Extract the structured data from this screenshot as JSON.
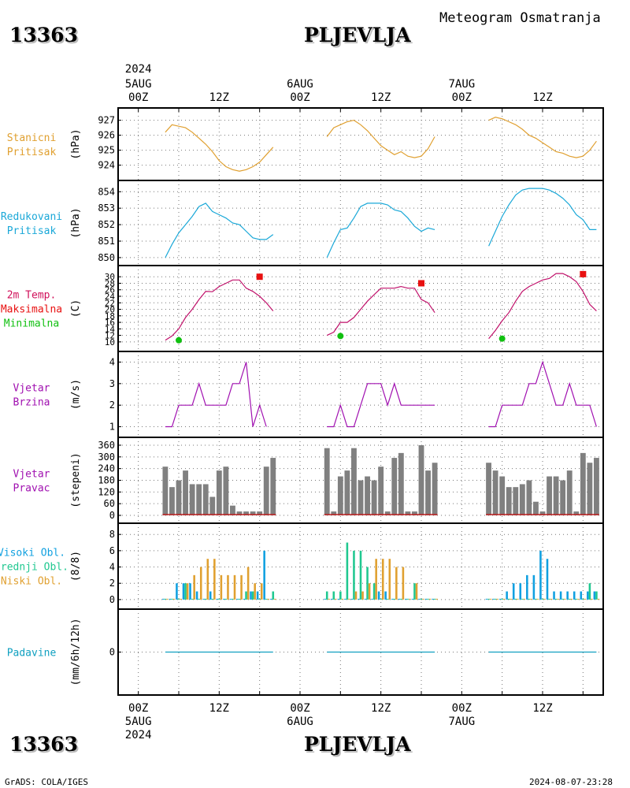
{
  "header": {
    "station_id": "13363",
    "station_name": "PLJEVLJA",
    "subtitle": "Meteogram Osmatranja"
  },
  "footer": {
    "station_id": "13363",
    "station_name": "PLJEVLJA",
    "credit": "GrADS: COLA/IGES",
    "timestamp": "2024-08-07-23:28"
  },
  "colors": {
    "pressure": "#e0a030",
    "reduced": "#1aa8d8",
    "temp_label": "#d0105a",
    "temp_line": "#c0106a",
    "max": "#e81010",
    "min": "#10c010",
    "wind": "#a010b0",
    "bars": "#808080",
    "high_cloud": "#10a0e0",
    "mid_cloud": "#20c890",
    "low_cloud": "#e0a030",
    "precip": "#10a0c0"
  },
  "time_axis": {
    "top_year": "2024",
    "top_labels": [
      {
        "hour": 0,
        "lines": [
          "5AUG",
          "00Z"
        ]
      },
      {
        "hour": 12,
        "lines": [
          "12Z"
        ]
      },
      {
        "hour": 24,
        "lines": [
          "6AUG",
          "00Z"
        ]
      },
      {
        "hour": 36,
        "lines": [
          "12Z"
        ]
      },
      {
        "hour": 48,
        "lines": [
          "7AUG",
          "00Z"
        ]
      },
      {
        "hour": 60,
        "lines": [
          "12Z"
        ]
      }
    ],
    "bottom_labels": [
      {
        "hour": 0,
        "lines": [
          "00Z",
          "5AUG",
          "2024"
        ]
      },
      {
        "hour": 12,
        "lines": [
          "12Z"
        ]
      },
      {
        "hour": 24,
        "lines": [
          "00Z",
          "6AUG"
        ]
      },
      {
        "hour": 36,
        "lines": [
          "12Z"
        ]
      },
      {
        "hour": 48,
        "lines": [
          "00Z",
          "7AUG"
        ]
      },
      {
        "hour": 60,
        "lines": [
          "12Z"
        ]
      }
    ]
  },
  "panels": [
    {
      "key": "station_pressure",
      "labels": [
        "Stanicni",
        "Pritisak"
      ],
      "label_color": "pressure",
      "unit": "(hPa)",
      "ymin": 923.4,
      "ymax": 927.4,
      "ticks": [
        924,
        925,
        926,
        927
      ]
    },
    {
      "key": "reduced_pressure",
      "labels": [
        "Redukovani",
        "Pritisak"
      ],
      "label_color": "reduced",
      "unit": "(hPa)",
      "ymin": 849.9,
      "ymax": 854.3,
      "ticks": [
        850,
        851,
        852,
        853,
        854
      ]
    },
    {
      "key": "temperature",
      "labels": [
        "2m Temp.",
        "Maksimalna",
        "Minimalna"
      ],
      "label_colors": [
        "temp_label",
        "max",
        "min"
      ],
      "unit": "(C)",
      "ymin": 9,
      "ymax": 31.5,
      "ticks": [
        10,
        12,
        14,
        16,
        18,
        20,
        22,
        24,
        26,
        28,
        30
      ]
    },
    {
      "key": "wind_speed",
      "labels": [
        "Vjetar",
        "Brzina"
      ],
      "label_color": "wind",
      "unit": "(m/s)",
      "ymin": 0.8,
      "ymax": 4.2,
      "ticks": [
        1,
        2,
        3,
        4
      ]
    },
    {
      "key": "wind_direction",
      "labels": [
        "Vjetar",
        "Pravac"
      ],
      "label_color": "wind",
      "unit": "(stepeni)",
      "ymin": -8,
      "ymax": 368,
      "ticks": [
        0,
        60,
        120,
        180,
        240,
        300,
        360
      ]
    },
    {
      "key": "clouds",
      "labels": [
        "Visoki Obl.",
        "Srednji Obl.",
        "Niski Obl."
      ],
      "label_colors": [
        "high_cloud",
        "mid_cloud",
        "low_cloud"
      ],
      "unit": "(8/8)",
      "ymin": -0.4,
      "ymax": 8.6,
      "ticks": [
        0,
        2,
        4,
        6,
        8
      ]
    },
    {
      "key": "precipitation",
      "labels": [
        "Padavine"
      ],
      "label_color": "precip",
      "unit": "(mm/6h/12h)",
      "ymin": -5,
      "ymax": 5,
      "ticks": [
        0
      ]
    }
  ],
  "chart_data": {
    "type": "line",
    "x_unit": "hours since 5AUG 00Z",
    "xlim": [
      -3,
      69
    ],
    "station_pressure": [
      {
        "x": [
          4,
          5,
          6,
          7,
          8,
          9,
          10,
          11,
          12,
          13,
          14,
          15,
          16,
          17,
          18,
          19,
          20
        ],
        "y": [
          926.2,
          926.7,
          926.6,
          926.5,
          926.2,
          925.8,
          925.4,
          924.9,
          924.3,
          923.9,
          923.7,
          923.6,
          923.7,
          923.9,
          924.2,
          924.7,
          925.2
        ]
      },
      {
        "x": [
          28,
          29,
          30,
          31,
          32,
          33,
          34,
          35,
          36,
          37,
          38,
          39,
          40,
          41,
          42,
          43,
          44
        ],
        "y": [
          925.9,
          926.5,
          926.7,
          926.9,
          927.0,
          926.7,
          926.3,
          925.8,
          925.3,
          925.0,
          924.7,
          924.9,
          924.6,
          924.5,
          924.6,
          925.1,
          925.9
        ]
      },
      {
        "x": [
          52,
          53,
          54,
          55,
          56,
          57,
          58,
          59,
          60,
          61,
          62,
          63,
          64,
          65,
          66,
          67,
          68
        ],
        "y": [
          927.0,
          927.2,
          927.1,
          926.9,
          926.7,
          926.4,
          926.0,
          925.8,
          925.5,
          925.2,
          924.9,
          924.8,
          924.6,
          924.5,
          924.6,
          925.0,
          925.6
        ]
      }
    ],
    "reduced_pressure": [
      {
        "x": [
          4,
          5,
          6,
          7,
          8,
          9,
          10,
          11,
          12,
          13,
          14,
          15,
          16,
          17,
          18,
          19,
          20
        ],
        "y": [
          850.0,
          850.8,
          851.5,
          852.0,
          852.5,
          853.1,
          853.3,
          852.8,
          852.6,
          852.4,
          852.1,
          852.0,
          851.6,
          851.2,
          851.1,
          851.1,
          851.4
        ]
      },
      {
        "x": [
          28,
          29,
          30,
          31,
          32,
          33,
          34,
          35,
          36,
          37,
          38,
          39,
          40,
          41,
          42,
          43,
          44
        ],
        "y": [
          850.0,
          850.9,
          851.7,
          851.8,
          852.4,
          853.1,
          853.3,
          853.3,
          853.3,
          853.2,
          852.9,
          852.8,
          852.4,
          851.9,
          851.6,
          851.8,
          851.7
        ]
      },
      {
        "x": [
          52,
          53,
          54,
          55,
          56,
          57,
          58,
          59,
          60,
          61,
          62,
          63,
          64,
          65,
          66,
          67,
          68
        ],
        "y": [
          850.7,
          851.6,
          852.5,
          853.2,
          853.8,
          854.1,
          854.2,
          854.2,
          854.2,
          854.1,
          853.9,
          853.6,
          853.2,
          852.6,
          852.3,
          851.7,
          851.7
        ]
      }
    ],
    "temperature": [
      {
        "x": [
          4,
          5,
          6,
          7,
          8,
          9,
          10,
          11,
          12,
          13,
          14,
          15,
          16,
          17,
          18,
          19,
          20
        ],
        "y": [
          10.5,
          11.8,
          14.0,
          17.5,
          20.0,
          23.0,
          25.5,
          25.4,
          27.0,
          28.0,
          29.0,
          29.0,
          26.5,
          25.5,
          24.0,
          22.0,
          19.5
        ]
      },
      {
        "x": [
          28,
          29,
          30,
          31,
          32,
          33,
          34,
          35,
          36,
          37,
          38,
          39,
          40,
          41,
          42,
          43,
          44
        ],
        "y": [
          12.0,
          13.0,
          16.0,
          16.0,
          17.5,
          20.0,
          22.5,
          24.5,
          26.5,
          26.5,
          26.5,
          27.0,
          26.5,
          26.5,
          23.0,
          22.0,
          19.0
        ]
      },
      {
        "x": [
          52,
          53,
          54,
          55,
          56,
          57,
          58,
          59,
          60,
          61,
          62,
          63,
          64,
          65,
          66,
          67,
          68
        ],
        "y": [
          11.0,
          13.5,
          16.5,
          19.0,
          22.5,
          25.5,
          27.0,
          28.0,
          29.0,
          29.5,
          31.0,
          31.0,
          30.0,
          28.5,
          25.5,
          21.5,
          19.5
        ]
      }
    ],
    "temp_max_markers": [
      {
        "x": 18,
        "y": 30
      },
      {
        "x": 42,
        "y": 28
      },
      {
        "x": 66,
        "y": 30.8
      }
    ],
    "temp_min_markers": [
      {
        "x": 6,
        "y": 10.5
      },
      {
        "x": 30,
        "y": 11.8
      },
      {
        "x": 54,
        "y": 11
      }
    ],
    "wind_speed": [
      {
        "x": [
          4,
          5,
          6,
          7,
          8,
          9,
          10,
          11,
          12,
          13,
          14,
          15,
          16,
          17,
          18,
          19,
          20
        ],
        "y": [
          1,
          1,
          2,
          2,
          2,
          3,
          2,
          2,
          2,
          2,
          3,
          3,
          4,
          1,
          2,
          1,
          null
        ]
      },
      {
        "x": [
          28,
          29,
          30,
          31,
          32,
          33,
          34,
          35,
          36,
          37,
          38,
          39,
          40,
          41,
          42,
          43,
          44
        ],
        "y": [
          1,
          1,
          2,
          1,
          1,
          2,
          3,
          3,
          3,
          2,
          3,
          2,
          2,
          2,
          2,
          2,
          2
        ]
      },
      {
        "x": [
          52,
          53,
          54,
          55,
          56,
          57,
          58,
          59,
          60,
          61,
          62,
          63,
          64,
          65,
          66,
          67,
          68
        ],
        "y": [
          1,
          1,
          2,
          2,
          2,
          2,
          3,
          3,
          4,
          3,
          2,
          2,
          3,
          2,
          2,
          2,
          1
        ]
      }
    ],
    "wind_direction": {
      "x": [
        4,
        5,
        6,
        7,
        8,
        9,
        10,
        11,
        12,
        13,
        14,
        15,
        16,
        17,
        18,
        19,
        20,
        28,
        29,
        30,
        31,
        32,
        33,
        34,
        35,
        36,
        37,
        38,
        39,
        40,
        41,
        42,
        43,
        44,
        52,
        53,
        54,
        55,
        56,
        57,
        58,
        59,
        60,
        61,
        62,
        63,
        64,
        65,
        66,
        67,
        68
      ],
      "y": [
        250,
        145,
        180,
        230,
        160,
        160,
        160,
        95,
        230,
        250,
        50,
        20,
        20,
        20,
        20,
        250,
        295,
        345,
        20,
        200,
        230,
        345,
        180,
        200,
        180,
        250,
        20,
        295,
        320,
        20,
        20,
        360,
        230,
        270,
        270,
        230,
        200,
        145,
        145,
        160,
        180,
        70,
        20,
        200,
        200,
        180,
        230,
        20,
        320,
        270,
        295
      ]
    },
    "clouds": {
      "series": [
        {
          "name": "Visoki Obl.",
          "color_key": "high_cloud",
          "x": [
            4,
            5,
            6,
            7,
            8,
            9,
            10,
            11,
            12,
            13,
            14,
            15,
            16,
            17,
            18,
            19,
            20,
            28,
            29,
            30,
            31,
            32,
            33,
            34,
            35,
            36,
            37,
            38,
            39,
            40,
            41,
            42,
            43,
            44,
            52,
            53,
            54,
            55,
            56,
            57,
            58,
            59,
            60,
            61,
            62,
            63,
            64,
            65,
            66,
            67,
            68
          ],
          "y": [
            0,
            0,
            2,
            2,
            2,
            1,
            0,
            1,
            0,
            0,
            0,
            0,
            0,
            1,
            1,
            6,
            0,
            0,
            0,
            0,
            0,
            0,
            0,
            0,
            0,
            1,
            1,
            0,
            0,
            0,
            0,
            0,
            0,
            0,
            0,
            0,
            0,
            1,
            2,
            2,
            3,
            3,
            6,
            5,
            1,
            1,
            1,
            1,
            1,
            1,
            1
          ]
        },
        {
          "name": "Srednji Obl.",
          "color_key": "mid_cloud",
          "x": [
            4,
            5,
            6,
            7,
            8,
            9,
            10,
            11,
            12,
            13,
            14,
            15,
            16,
            17,
            18,
            19,
            20,
            28,
            29,
            30,
            31,
            32,
            33,
            34,
            35,
            36,
            37,
            38,
            39,
            40,
            41,
            42,
            43,
            44,
            52,
            53,
            54,
            55,
            56,
            57,
            58,
            59,
            60,
            61,
            62,
            63,
            64,
            65,
            66,
            67,
            68
          ],
          "y": [
            0,
            0,
            0,
            2,
            0,
            0,
            0,
            0,
            0,
            0,
            0,
            0,
            1,
            1,
            0,
            0,
            1,
            1,
            1,
            1,
            7,
            6,
            6,
            4,
            2,
            0,
            0,
            0,
            0,
            0,
            2,
            0,
            0,
            0,
            0,
            0,
            0,
            0,
            0,
            0,
            0,
            0,
            0,
            0,
            0,
            0,
            0,
            0,
            0,
            2,
            1
          ]
        },
        {
          "name": "Niski Obl.",
          "color_key": "low_cloud",
          "x": [
            4,
            5,
            6,
            7,
            8,
            9,
            10,
            11,
            12,
            13,
            14,
            15,
            16,
            17,
            18,
            19,
            20,
            28,
            29,
            30,
            31,
            32,
            33,
            34,
            35,
            36,
            37,
            38,
            39,
            40,
            41,
            42,
            43,
            44,
            52,
            53,
            54,
            55,
            56,
            57,
            58,
            59,
            60,
            61,
            62,
            63,
            64,
            65,
            66,
            67,
            68
          ],
          "y": [
            0,
            0,
            0,
            2,
            3,
            4,
            5,
            5,
            3,
            3,
            3,
            3,
            4,
            2,
            2,
            0,
            0,
            0,
            0,
            0,
            0,
            1,
            1,
            2,
            5,
            5,
            5,
            4,
            4,
            0,
            2,
            0,
            0,
            0,
            0,
            0,
            0,
            0,
            0,
            0,
            0,
            0,
            0,
            0,
            0,
            0,
            0,
            0,
            0,
            0,
            0
          ]
        }
      ]
    },
    "precipitation": [
      {
        "x": [
          4,
          20
        ],
        "y": [
          0,
          0
        ]
      },
      {
        "x": [
          28,
          44
        ],
        "y": [
          0,
          0
        ]
      },
      {
        "x": [
          52,
          68
        ],
        "y": [
          0,
          0
        ]
      }
    ]
  }
}
